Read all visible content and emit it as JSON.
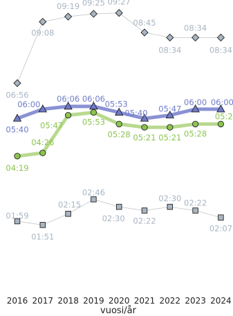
{
  "chart_data": {
    "type": "line",
    "xlabel": "vuosi/år",
    "ylabel": "",
    "x": [
      "2016",
      "2017",
      "2018",
      "2019",
      "2020",
      "2021",
      "2022",
      "2023",
      "2024"
    ],
    "y_unit": "hours:minutes",
    "ylim": [
      0,
      10
    ],
    "grid": false,
    "legend": "none",
    "series": [
      {
        "color": "#a9b5c2",
        "line_color": "#cfcfcf",
        "line_width": "thin",
        "marker": "diamond",
        "values": [
          6.933,
          9.133,
          9.317,
          9.417,
          9.45,
          8.75,
          8.567,
          8.567,
          8.567
        ],
        "labels": [
          "06:56",
          "09:08",
          "09:19",
          "09:25",
          "09:27",
          "08:45",
          "08:34",
          "08:34",
          "08:34"
        ]
      },
      {
        "color": "#6f7bc8",
        "line_color": "#8a91d4",
        "line_width": "thick",
        "marker": "triangle",
        "values": [
          5.667,
          6.0,
          6.1,
          6.1,
          5.883,
          5.667,
          5.783,
          6.0,
          6.0
        ],
        "labels": [
          "05:40",
          "06:00",
          "06:06",
          "06:06",
          "05:53",
          "05:40",
          "05:47",
          "06:00",
          "06:00"
        ]
      },
      {
        "color": "#8cc44f",
        "line_color": "#b9d98f",
        "line_width": "thick",
        "marker": "circle",
        "values": [
          4.317,
          4.433,
          5.783,
          5.883,
          5.467,
          5.35,
          5.35,
          5.467,
          5.467
        ],
        "labels": [
          "04:19",
          "04:26",
          "05:47",
          "05:53",
          "05:28",
          "05:21",
          "05:21",
          "05:28",
          "05:28"
        ]
      },
      {
        "color": "#a9b5c2",
        "line_color": "#cfcfcf",
        "line_width": "thin",
        "marker": "square",
        "values": [
          1.983,
          1.85,
          2.25,
          2.767,
          2.5,
          2.367,
          2.5,
          2.367,
          2.117
        ],
        "labels": [
          "01:59",
          "01:51",
          "02:15",
          "02:46",
          "02:30",
          "02:22",
          "02:30",
          "02:22",
          "02:07"
        ]
      }
    ]
  }
}
